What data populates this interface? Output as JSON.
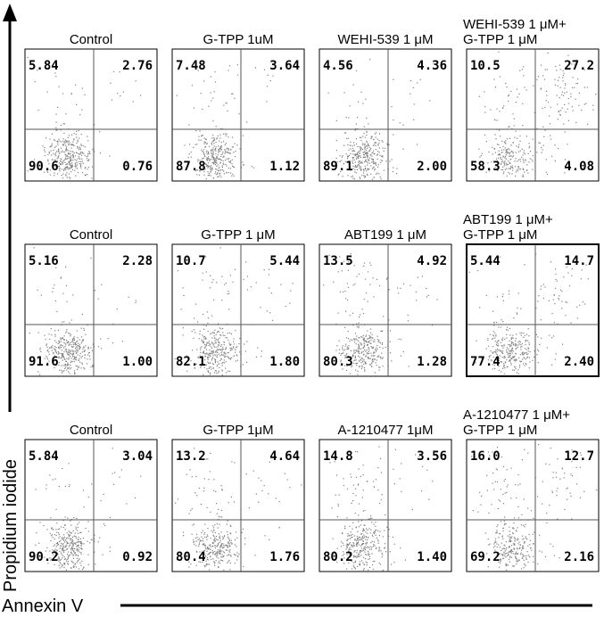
{
  "figure": {
    "y_axis_label": "Propidium iodide",
    "x_axis_label": "Annexin V"
  },
  "chart_data": [
    {
      "type": "scatter",
      "row": 1,
      "panels": [
        {
          "title": [
            "Control"
          ],
          "quadrants": {
            "upper_left": "5.84",
            "upper_right": "2.76",
            "lower_left": "90.6",
            "lower_right": "0.76"
          }
        },
        {
          "title": [
            "G-TPP 1uM"
          ],
          "quadrants": {
            "upper_left": "7.48",
            "upper_right": "3.64",
            "lower_left": "87.8",
            "lower_right": "1.12"
          }
        },
        {
          "title": [
            "WEHI-539 1 μM"
          ],
          "quadrants": {
            "upper_left": "4.56",
            "upper_right": "4.36",
            "lower_left": "89.1",
            "lower_right": "2.00"
          }
        },
        {
          "title": [
            "WEHI-539 1 μM+",
            "G-TPP 1 μM"
          ],
          "quadrants": {
            "upper_left": "10.5",
            "upper_right": "27.2",
            "lower_left": "58.3",
            "lower_right": "4.08"
          }
        }
      ]
    },
    {
      "type": "scatter",
      "row": 2,
      "panels": [
        {
          "title": [
            "Control"
          ],
          "quadrants": {
            "upper_left": "5.16",
            "upper_right": "2.28",
            "lower_left": "91.6",
            "lower_right": "1.00"
          }
        },
        {
          "title": [
            "G-TPP 1 μM"
          ],
          "quadrants": {
            "upper_left": "10.7",
            "upper_right": "5.44",
            "lower_left": "82.1",
            "lower_right": "1.80"
          }
        },
        {
          "title": [
            "ABT199 1 μM"
          ],
          "quadrants": {
            "upper_left": "13.5",
            "upper_right": "4.92",
            "lower_left": "80.3",
            "lower_right": "1.28"
          }
        },
        {
          "title": [
            "ABT199 1 μM+",
            "G-TPP 1 μM"
          ],
          "quadrants": {
            "upper_left": "5.44",
            "upper_right": "14.7",
            "lower_left": "77.4",
            "lower_right": "2.40"
          }
        }
      ]
    },
    {
      "type": "scatter",
      "row": 3,
      "panels": [
        {
          "title": [
            "Control"
          ],
          "quadrants": {
            "upper_left": "5.84",
            "upper_right": "3.04",
            "lower_left": "90.2",
            "lower_right": "0.92"
          }
        },
        {
          "title": [
            "G-TPP 1μM"
          ],
          "quadrants": {
            "upper_left": "13.2",
            "upper_right": "4.64",
            "lower_left": "80.4",
            "lower_right": "1.76"
          }
        },
        {
          "title": [
            "A-1210477 1μM"
          ],
          "quadrants": {
            "upper_left": "14.8",
            "upper_right": "3.56",
            "lower_left": "80.2",
            "lower_right": "1.40"
          }
        },
        {
          "title": [
            "A-1210477 1 μM+",
            "G-TPP 1 μM"
          ],
          "quadrants": {
            "upper_left": "16.0",
            "upper_right": "12.7",
            "lower_left": "69.2",
            "lower_right": "2.16"
          }
        }
      ]
    }
  ]
}
